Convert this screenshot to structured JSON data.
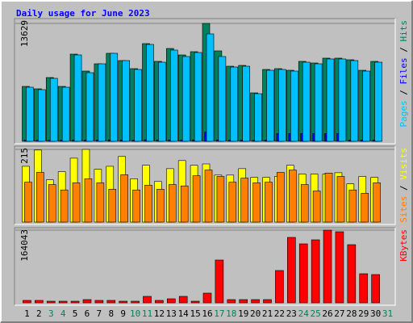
{
  "chart_data": [
    {
      "type": "bar",
      "title": "Daily usage for June 2023",
      "legend_separator": " / ",
      "ylim": [
        0,
        13629
      ],
      "yticks": [
        13629
      ],
      "series": [
        {
          "name": "Hits",
          "color": "#00805c",
          "values": [
            6348,
            6068,
            7375,
            6348,
            10082,
            8121,
            8962,
            10175,
            9335,
            8402,
            11295,
            9242,
            10735,
            9988,
            10362,
            13629,
            10455,
            8682,
            8775,
            5601,
            8308,
            8402,
            8215,
            9242,
            9055,
            9615,
            9615,
            9428,
            8215,
            9242,
            null
          ]
        },
        {
          "name": "Files",
          "color": "#0000ff",
          "values": [
            150,
            120,
            140,
            130,
            160,
            150,
            150,
            170,
            160,
            140,
            180,
            160,
            170,
            160,
            170,
            1100,
            170,
            150,
            150,
            110,
            150,
            900,
            900,
            900,
            900,
            900,
            900,
            160,
            150,
            160,
            null
          ]
        },
        {
          "name": "Pages",
          "color": "#00c0ff",
          "values": [
            6255,
            5975,
            7282,
            6255,
            9989,
            7935,
            8962,
            10175,
            9335,
            8308,
            11202,
            9149,
            10549,
            9802,
            10269,
            12416,
            9802,
            8588,
            8682,
            5508,
            8215,
            8308,
            8121,
            9149,
            8962,
            9522,
            9522,
            9335,
            8121,
            9149,
            null
          ]
        }
      ]
    },
    {
      "type": "bar",
      "legend_separator": " / ",
      "ylim": [
        0,
        215
      ],
      "yticks": [
        215
      ],
      "series": [
        {
          "name": "Visits",
          "color": "#ffff00",
          "values": [
            165,
            213,
            125,
            149,
            189,
            215,
            156,
            165,
            194,
            128,
            168,
            120,
            158,
            182,
            168,
            172,
            139,
            139,
            158,
            132,
            132,
            135,
            168,
            142,
            142,
            142,
            146,
            113,
            135,
            132,
            null
          ]
        },
        {
          "name": "Sites",
          "color": "#ff8000",
          "values": [
            118,
            147,
            111,
            95,
            116,
            128,
            116,
            97,
            140,
            95,
            109,
            97,
            111,
            107,
            137,
            154,
            135,
            118,
            130,
            116,
            118,
            147,
            154,
            111,
            92,
            145,
            135,
            95,
            85,
            116,
            null
          ]
        }
      ]
    },
    {
      "type": "bar",
      "ylim": [
        0,
        164043
      ],
      "yticks": [
        164043
      ],
      "categories": [
        "1",
        "2",
        "3",
        "4",
        "5",
        "6",
        "7",
        "8",
        "9",
        "10",
        "11",
        "12",
        "13",
        "14",
        "15",
        "16",
        "17",
        "18",
        "19",
        "20",
        "21",
        "22",
        "23",
        "24",
        "25",
        "26",
        "27",
        "28",
        "29",
        "30",
        "31"
      ],
      "category_colors": [
        "#000000",
        "#000000",
        "#00805c",
        "#00805c",
        "#000000",
        "#000000",
        "#000000",
        "#000000",
        "#000000",
        "#00805c",
        "#00805c",
        "#000000",
        "#000000",
        "#000000",
        "#000000",
        "#000000",
        "#00805c",
        "#00805c",
        "#000000",
        "#000000",
        "#000000",
        "#000000",
        "#000000",
        "#00805c",
        "#00805c",
        "#000000",
        "#000000",
        "#000000",
        "#000000",
        "#000000",
        "#00805c"
      ],
      "series": [
        {
          "name": "KBytes",
          "color": "#ff0000",
          "values": [
            5469,
            5469,
            3646,
            3646,
            3646,
            7292,
            5469,
            5469,
            3646,
            3646,
            14584,
            5469,
            9115,
            14584,
            3646,
            21876,
            96619,
            7292,
            7292,
            7292,
            7292,
            72920,
            147659,
            133079,
            142194,
            164043,
            160397,
            131256,
            65628,
            63805,
            null
          ]
        }
      ]
    }
  ]
}
